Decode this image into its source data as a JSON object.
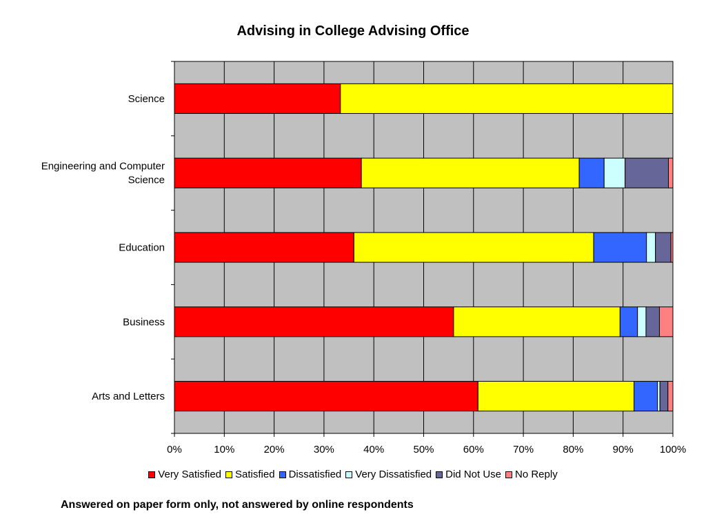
{
  "chart_data": {
    "type": "bar",
    "orientation": "horizontal",
    "stacked": "percent",
    "title": "Advising in College Advising Office",
    "footnote": "Answered on paper form only, not answered by online respondents",
    "categories": [
      "Science",
      "Engineering and Computer Science",
      "Education",
      "Business",
      "Arts and Letters"
    ],
    "category_lines": [
      [
        "Science"
      ],
      [
        "Engineering and Computer",
        "Science"
      ],
      [
        "Education"
      ],
      [
        "Business"
      ],
      [
        "Arts and Letters"
      ]
    ],
    "xlim": [
      0,
      100
    ],
    "xticks": [
      "0%",
      "10%",
      "20%",
      "30%",
      "40%",
      "50%",
      "60%",
      "70%",
      "80%",
      "90%",
      "100%"
    ],
    "grid": true,
    "legend_position": "bottom",
    "series": [
      {
        "name": "Very Satisfied",
        "color": "#ff0000",
        "values": [
          33.3,
          37.5,
          36.0,
          56.0,
          60.9
        ]
      },
      {
        "name": "Satisfied",
        "color": "#ffff00",
        "values": [
          66.7,
          43.7,
          48.1,
          33.4,
          31.3
        ]
      },
      {
        "name": "Dissatisfied",
        "color": "#3366ff",
        "values": [
          0,
          5.0,
          10.6,
          3.5,
          4.7
        ]
      },
      {
        "name": "Very Dissatisfied",
        "color": "#ccffff",
        "values": [
          0,
          4.2,
          1.8,
          1.7,
          0.5
        ]
      },
      {
        "name": "Did Not Use",
        "color": "#666699",
        "values": [
          0,
          8.7,
          3.1,
          2.7,
          1.6
        ]
      },
      {
        "name": "No Reply",
        "color": "#ff8080",
        "values": [
          0,
          0.9,
          0.4,
          2.7,
          1.0
        ]
      }
    ]
  }
}
